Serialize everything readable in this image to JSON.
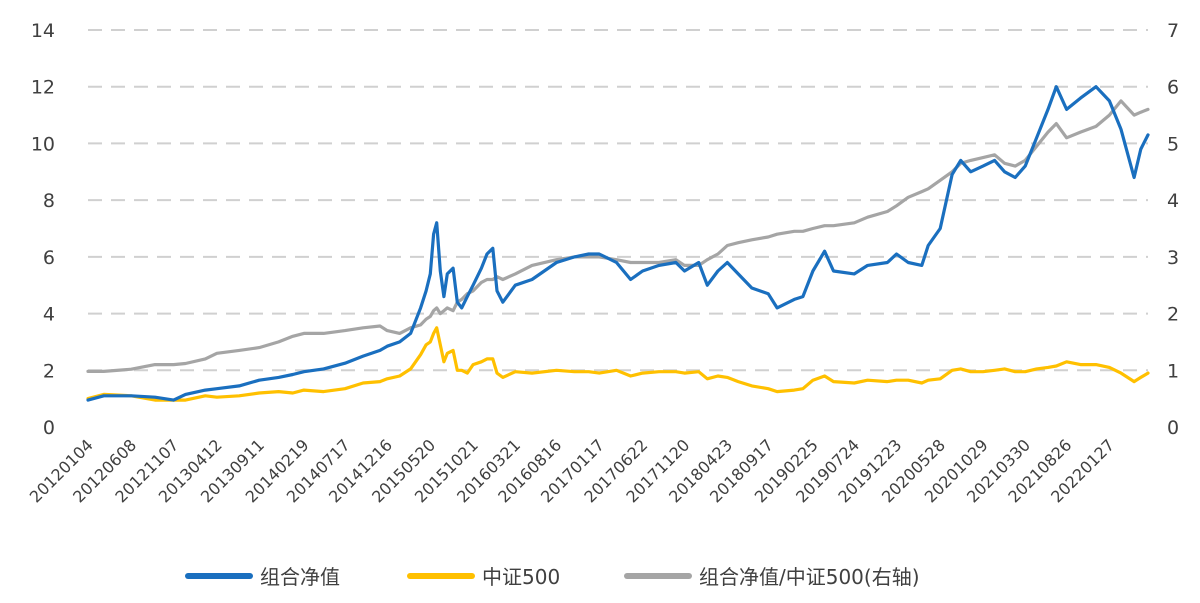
{
  "chart_data": {
    "type": "line",
    "title": "",
    "xlabel": "",
    "ylabel": "",
    "y_left": {
      "ticks": [
        0,
        2,
        4,
        6,
        8,
        10,
        12,
        14
      ],
      "ylim": [
        0,
        14
      ]
    },
    "y_right": {
      "ticks": [
        0,
        1,
        2,
        3,
        4,
        5,
        6,
        7
      ],
      "ylim": [
        0,
        7
      ]
    },
    "grid": "horizontal dashed",
    "legend_position": "bottom",
    "x_tick_labels": [
      "20120104",
      "20120608",
      "20121107",
      "20130412",
      "20130911",
      "20140219",
      "20140717",
      "20141216",
      "20150520",
      "20151021",
      "20160321",
      "20160816",
      "20170117",
      "20170622",
      "20171120",
      "20180423",
      "20180917",
      "20190225",
      "20190724",
      "20191223",
      "20200528",
      "20201029",
      "20210330",
      "20210826",
      "20220127"
    ],
    "x_range": [
      "20120104",
      "20220615"
    ],
    "series": [
      {
        "name": "组合净值",
        "axis": "left",
        "color": "#1a6fbf",
        "points": [
          [
            "20120104",
            0.95
          ],
          [
            "20120301",
            1.1
          ],
          [
            "20120608",
            1.1
          ],
          [
            "20120901",
            1.05
          ],
          [
            "20121107",
            0.95
          ],
          [
            "20121220",
            1.15
          ],
          [
            "20130301",
            1.3
          ],
          [
            "20130412",
            1.35
          ],
          [
            "20130701",
            1.45
          ],
          [
            "20130911",
            1.65
          ],
          [
            "20131120",
            1.75
          ],
          [
            "20140110",
            1.85
          ],
          [
            "20140219",
            1.95
          ],
          [
            "20140501",
            2.05
          ],
          [
            "20140717",
            2.25
          ],
          [
            "20140920",
            2.5
          ],
          [
            "20141120",
            2.7
          ],
          [
            "20141216",
            2.85
          ],
          [
            "20150130",
            3.0
          ],
          [
            "20150310",
            3.3
          ],
          [
            "20150415",
            4.2
          ],
          [
            "20150505",
            4.8
          ],
          [
            "20150520",
            5.4
          ],
          [
            "20150601",
            6.8
          ],
          [
            "20150612",
            7.2
          ],
          [
            "20150625",
            5.5
          ],
          [
            "20150708",
            4.6
          ],
          [
            "20150720",
            5.4
          ],
          [
            "20150810",
            5.6
          ],
          [
            "20150825",
            4.4
          ],
          [
            "20150910",
            4.2
          ],
          [
            "20150930",
            4.6
          ],
          [
            "20151021",
            5.0
          ],
          [
            "20151120",
            5.6
          ],
          [
            "20151210",
            6.1
          ],
          [
            "20151231",
            6.3
          ],
          [
            "20160115",
            4.8
          ],
          [
            "20160205",
            4.4
          ],
          [
            "20160321",
            5.0
          ],
          [
            "20160520",
            5.2
          ],
          [
            "20160816",
            5.8
          ],
          [
            "20161020",
            6.0
          ],
          [
            "20161210",
            6.1
          ],
          [
            "20170117",
            6.1
          ],
          [
            "20170320",
            5.8
          ],
          [
            "20170510",
            5.2
          ],
          [
            "20170622",
            5.5
          ],
          [
            "20170820",
            5.7
          ],
          [
            "20171020",
            5.8
          ],
          [
            "20171120",
            5.5
          ],
          [
            "20180110",
            5.8
          ],
          [
            "20180210",
            5.0
          ],
          [
            "20180320",
            5.5
          ],
          [
            "20180423",
            5.8
          ],
          [
            "20180601",
            5.4
          ],
          [
            "20180720",
            4.9
          ],
          [
            "20180917",
            4.7
          ],
          [
            "20181019",
            4.2
          ],
          [
            "20181220",
            4.5
          ],
          [
            "20190120",
            4.6
          ],
          [
            "20190225",
            5.5
          ],
          [
            "20190408",
            6.2
          ],
          [
            "20190510",
            5.5
          ],
          [
            "20190724",
            5.4
          ],
          [
            "20190910",
            5.7
          ],
          [
            "20191120",
            5.8
          ],
          [
            "20191223",
            6.1
          ],
          [
            "20200203",
            5.8
          ],
          [
            "20200323",
            5.7
          ],
          [
            "20200415",
            6.4
          ],
          [
            "20200528",
            7.0
          ],
          [
            "20200710",
            8.9
          ],
          [
            "20200810",
            9.4
          ],
          [
            "20200915",
            9.0
          ],
          [
            "20201029",
            9.2
          ],
          [
            "20201210",
            9.4
          ],
          [
            "20210115",
            9.0
          ],
          [
            "20210222",
            8.8
          ],
          [
            "20210330",
            9.2
          ],
          [
            "20210510",
            10.2
          ],
          [
            "20210620",
            11.2
          ],
          [
            "20210720",
            12.0
          ],
          [
            "20210826",
            11.2
          ],
          [
            "20211015",
            11.6
          ],
          [
            "20211210",
            12.0
          ],
          [
            "20220127",
            11.5
          ],
          [
            "20220310",
            10.5
          ],
          [
            "20220426",
            8.8
          ],
          [
            "20220520",
            9.8
          ],
          [
            "20220615",
            10.3
          ]
        ]
      },
      {
        "name": "中证500",
        "axis": "left",
        "color": "#ffc000",
        "points": [
          [
            "20120104",
            1.0
          ],
          [
            "20120301",
            1.15
          ],
          [
            "20120608",
            1.1
          ],
          [
            "20120901",
            0.95
          ],
          [
            "20121107",
            0.95
          ],
          [
            "20121220",
            0.95
          ],
          [
            "20130301",
            1.1
          ],
          [
            "20130412",
            1.05
          ],
          [
            "20130701",
            1.1
          ],
          [
            "20130911",
            1.2
          ],
          [
            "20131120",
            1.25
          ],
          [
            "20140110",
            1.2
          ],
          [
            "20140219",
            1.3
          ],
          [
            "20140501",
            1.25
          ],
          [
            "20140717",
            1.35
          ],
          [
            "20140920",
            1.55
          ],
          [
            "20141120",
            1.6
          ],
          [
            "20141216",
            1.7
          ],
          [
            "20150130",
            1.8
          ],
          [
            "20150310",
            2.05
          ],
          [
            "20150415",
            2.55
          ],
          [
            "20150505",
            2.9
          ],
          [
            "20150520",
            3.0
          ],
          [
            "20150601",
            3.3
          ],
          [
            "20150612",
            3.5
          ],
          [
            "20150625",
            2.9
          ],
          [
            "20150708",
            2.3
          ],
          [
            "20150720",
            2.6
          ],
          [
            "20150810",
            2.7
          ],
          [
            "20150825",
            2.0
          ],
          [
            "20150910",
            2.0
          ],
          [
            "20150930",
            1.9
          ],
          [
            "20151021",
            2.2
          ],
          [
            "20151120",
            2.3
          ],
          [
            "20151210",
            2.4
          ],
          [
            "20151231",
            2.4
          ],
          [
            "20160115",
            1.9
          ],
          [
            "20160205",
            1.75
          ],
          [
            "20160321",
            1.95
          ],
          [
            "20160520",
            1.9
          ],
          [
            "20160816",
            2.0
          ],
          [
            "20161020",
            1.95
          ],
          [
            "20161210",
            1.95
          ],
          [
            "20170117",
            1.9
          ],
          [
            "20170320",
            2.0
          ],
          [
            "20170510",
            1.8
          ],
          [
            "20170622",
            1.9
          ],
          [
            "20170820",
            1.95
          ],
          [
            "20171020",
            1.95
          ],
          [
            "20171120",
            1.9
          ],
          [
            "20180110",
            1.95
          ],
          [
            "20180210",
            1.7
          ],
          [
            "20180320",
            1.8
          ],
          [
            "20180423",
            1.75
          ],
          [
            "20180601",
            1.6
          ],
          [
            "20180720",
            1.45
          ],
          [
            "20180917",
            1.35
          ],
          [
            "20181019",
            1.25
          ],
          [
            "20181220",
            1.3
          ],
          [
            "20190120",
            1.35
          ],
          [
            "20190225",
            1.65
          ],
          [
            "20190408",
            1.8
          ],
          [
            "20190510",
            1.6
          ],
          [
            "20190724",
            1.55
          ],
          [
            "20190910",
            1.65
          ],
          [
            "20191120",
            1.6
          ],
          [
            "20191223",
            1.65
          ],
          [
            "20200203",
            1.65
          ],
          [
            "20200323",
            1.55
          ],
          [
            "20200415",
            1.65
          ],
          [
            "20200528",
            1.7
          ],
          [
            "20200710",
            2.0
          ],
          [
            "20200810",
            2.05
          ],
          [
            "20200915",
            1.95
          ],
          [
            "20201029",
            1.95
          ],
          [
            "20201210",
            2.0
          ],
          [
            "20210115",
            2.05
          ],
          [
            "20210222",
            1.95
          ],
          [
            "20210330",
            1.95
          ],
          [
            "20210510",
            2.05
          ],
          [
            "20210620",
            2.1
          ],
          [
            "20210720",
            2.15
          ],
          [
            "20210826",
            2.3
          ],
          [
            "20211015",
            2.2
          ],
          [
            "20211210",
            2.2
          ],
          [
            "20220127",
            2.1
          ],
          [
            "20220310",
            1.9
          ],
          [
            "20220426",
            1.6
          ],
          [
            "20220520",
            1.75
          ],
          [
            "20220615",
            1.9
          ]
        ]
      },
      {
        "name": "组合净值/中证500(右轴)",
        "axis": "right",
        "color": "#a5a5a5",
        "points": [
          [
            "20120104",
            0.98
          ],
          [
            "20120301",
            0.98
          ],
          [
            "20120608",
            1.02
          ],
          [
            "20120901",
            1.1
          ],
          [
            "20121107",
            1.1
          ],
          [
            "20121220",
            1.12
          ],
          [
            "20130301",
            1.2
          ],
          [
            "20130412",
            1.3
          ],
          [
            "20130701",
            1.35
          ],
          [
            "20130911",
            1.4
          ],
          [
            "20131120",
            1.5
          ],
          [
            "20140110",
            1.6
          ],
          [
            "20140219",
            1.65
          ],
          [
            "20140501",
            1.65
          ],
          [
            "20140717",
            1.7
          ],
          [
            "20140920",
            1.75
          ],
          [
            "20141120",
            1.78
          ],
          [
            "20141216",
            1.7
          ],
          [
            "20150130",
            1.65
          ],
          [
            "20150310",
            1.75
          ],
          [
            "20150415",
            1.8
          ],
          [
            "20150505",
            1.9
          ],
          [
            "20150520",
            1.95
          ],
          [
            "20150601",
            2.05
          ],
          [
            "20150612",
            2.1
          ],
          [
            "20150625",
            2.0
          ],
          [
            "20150708",
            2.05
          ],
          [
            "20150720",
            2.1
          ],
          [
            "20150810",
            2.05
          ],
          [
            "20150825",
            2.2
          ],
          [
            "20150910",
            2.25
          ],
          [
            "20150930",
            2.35
          ],
          [
            "20151021",
            2.4
          ],
          [
            "20151120",
            2.55
          ],
          [
            "20151210",
            2.6
          ],
          [
            "20151231",
            2.6
          ],
          [
            "20160115",
            2.65
          ],
          [
            "20160205",
            2.6
          ],
          [
            "20160321",
            2.7
          ],
          [
            "20160520",
            2.85
          ],
          [
            "20160816",
            2.95
          ],
          [
            "20161020",
            3.0
          ],
          [
            "20161210",
            3.0
          ],
          [
            "20170117",
            3.0
          ],
          [
            "20170320",
            2.95
          ],
          [
            "20170510",
            2.9
          ],
          [
            "20170622",
            2.9
          ],
          [
            "20170820",
            2.9
          ],
          [
            "20171020",
            2.95
          ],
          [
            "20171120",
            2.85
          ],
          [
            "20180110",
            2.85
          ],
          [
            "20180210",
            2.95
          ],
          [
            "20180320",
            3.05
          ],
          [
            "20180423",
            3.2
          ],
          [
            "20180601",
            3.25
          ],
          [
            "20180720",
            3.3
          ],
          [
            "20180917",
            3.35
          ],
          [
            "20181019",
            3.4
          ],
          [
            "20181220",
            3.45
          ],
          [
            "20190120",
            3.45
          ],
          [
            "20190225",
            3.5
          ],
          [
            "20190408",
            3.55
          ],
          [
            "20190510",
            3.55
          ],
          [
            "20190724",
            3.6
          ],
          [
            "20190910",
            3.7
          ],
          [
            "20191120",
            3.8
          ],
          [
            "20191223",
            3.9
          ],
          [
            "20200203",
            4.05
          ],
          [
            "20200323",
            4.15
          ],
          [
            "20200415",
            4.2
          ],
          [
            "20200528",
            4.35
          ],
          [
            "20200710",
            4.5
          ],
          [
            "20200810",
            4.65
          ],
          [
            "20200915",
            4.7
          ],
          [
            "20201029",
            4.75
          ],
          [
            "20201210",
            4.8
          ],
          [
            "20210115",
            4.65
          ],
          [
            "20210222",
            4.6
          ],
          [
            "20210330",
            4.7
          ],
          [
            "20210510",
            4.95
          ],
          [
            "20210620",
            5.2
          ],
          [
            "20210720",
            5.35
          ],
          [
            "20210826",
            5.1
          ],
          [
            "20211015",
            5.2
          ],
          [
            "20211210",
            5.3
          ],
          [
            "20220127",
            5.5
          ],
          [
            "20220310",
            5.75
          ],
          [
            "20220426",
            5.5
          ],
          [
            "20220520",
            5.55
          ],
          [
            "20220615",
            5.6
          ]
        ]
      }
    ]
  }
}
